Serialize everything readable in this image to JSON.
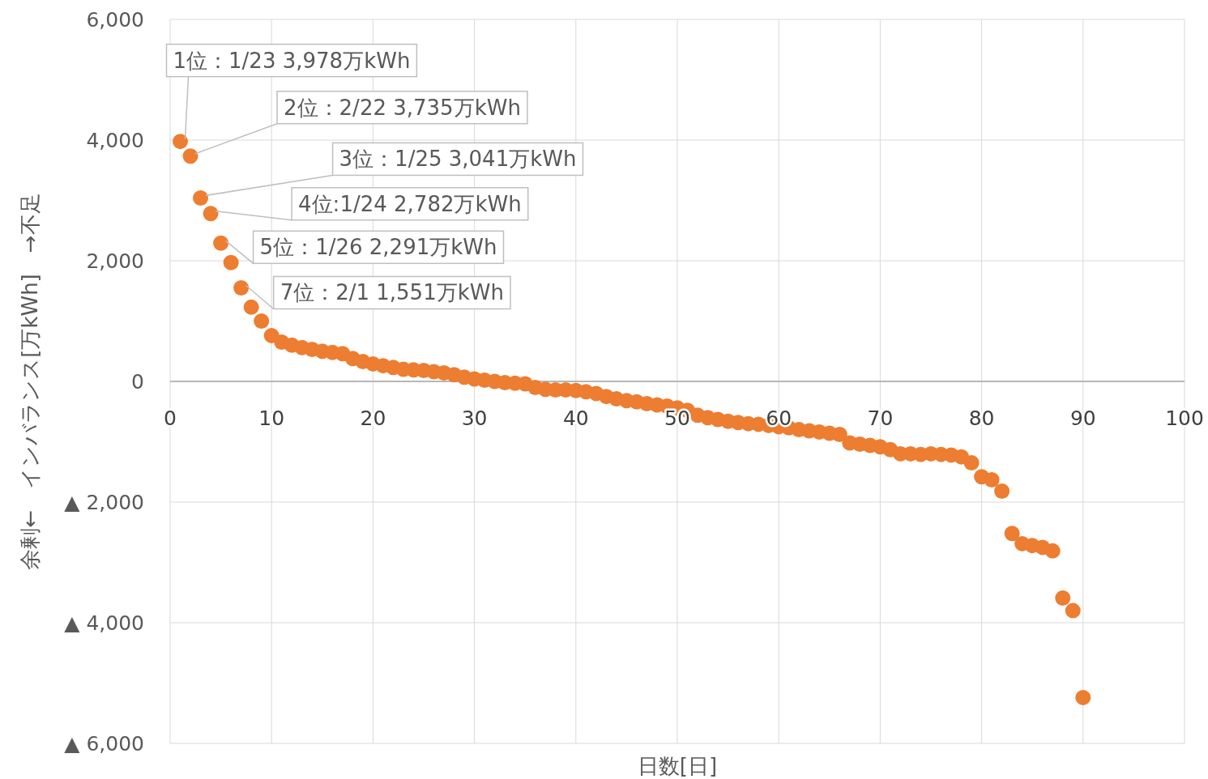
{
  "chart_data": {
    "type": "scatter",
    "xlabel": "日数[日]",
    "ylabel": "余剰←　インバランス[万kWh]　→不足",
    "x": [
      1,
      2,
      3,
      4,
      5,
      6,
      7,
      8,
      9,
      10,
      11,
      12,
      13,
      14,
      15,
      16,
      17,
      18,
      19,
      20,
      21,
      22,
      23,
      24,
      25,
      26,
      27,
      28,
      29,
      30,
      31,
      32,
      33,
      34,
      35,
      36,
      37,
      38,
      39,
      40,
      41,
      42,
      43,
      44,
      45,
      46,
      47,
      48,
      49,
      50,
      51,
      52,
      53,
      54,
      55,
      56,
      57,
      58,
      59,
      60,
      61,
      62,
      63,
      64,
      65,
      66,
      67,
      68,
      69,
      70,
      71,
      72,
      73,
      74,
      75,
      76,
      77,
      78,
      79,
      80,
      81,
      82,
      83,
      84,
      85,
      86,
      87,
      88,
      89,
      90
    ],
    "series": [
      {
        "color": "#ed7d31",
        "values": [
          3978,
          3735,
          3041,
          2782,
          2291,
          1970,
          1551,
          1230,
          1000,
          760,
          650,
          600,
          560,
          530,
          500,
          480,
          460,
          380,
          330,
          290,
          260,
          230,
          200,
          190,
          180,
          160,
          140,
          110,
          70,
          40,
          20,
          0,
          -20,
          -30,
          -40,
          -100,
          -130,
          -140,
          -140,
          -150,
          -170,
          -200,
          -250,
          -290,
          -320,
          -340,
          -370,
          -390,
          -410,
          -440,
          -480,
          -560,
          -600,
          -630,
          -660,
          -680,
          -700,
          -710,
          -730,
          -750,
          -770,
          -800,
          -820,
          -840,
          -860,
          -880,
          -1020,
          -1040,
          -1060,
          -1085,
          -1130,
          -1200,
          -1200,
          -1210,
          -1200,
          -1210,
          -1220,
          -1250,
          -1350,
          -1580,
          -1630,
          -1820,
          -2520,
          -2690,
          -2720,
          -2750,
          -2810,
          -3590,
          -3800,
          -5240
        ]
      }
    ],
    "xlim": [
      0,
      100
    ],
    "xticks": [
      0,
      10,
      20,
      30,
      40,
      50,
      60,
      70,
      80,
      90,
      100
    ],
    "ylim": [
      -6000,
      6000
    ],
    "yticks": [
      {
        "value": -6000,
        "label": "▲ 6,000"
      },
      {
        "value": -4000,
        "label": "▲ 4,000"
      },
      {
        "value": -2000,
        "label": "▲ 2,000"
      },
      0,
      {
        "value": 2000,
        "label": "2,000"
      },
      {
        "value": 4000,
        "label": "4,000"
      },
      {
        "value": 6000,
        "label": "6,000"
      }
    ],
    "grid": true,
    "marker": "circle",
    "annotations": [
      {
        "text": "1位：1/23 3,978万kWh",
        "x": 1,
        "y": 3978
      },
      {
        "text": "2位：2/22 3,735万kWh",
        "x": 2,
        "y": 3735
      },
      {
        "text": "3位：1/25 3,041万kWh",
        "x": 3,
        "y": 3041
      },
      {
        "text": "4位:1/24 2,782万kWh",
        "x": 4,
        "y": 2782
      },
      {
        "text": "5位：1/26 2,291万kWh",
        "x": 5,
        "y": 2291
      },
      {
        "text": "7位：2/1 1,551万kWh",
        "x": 7,
        "y": 1551
      }
    ]
  }
}
